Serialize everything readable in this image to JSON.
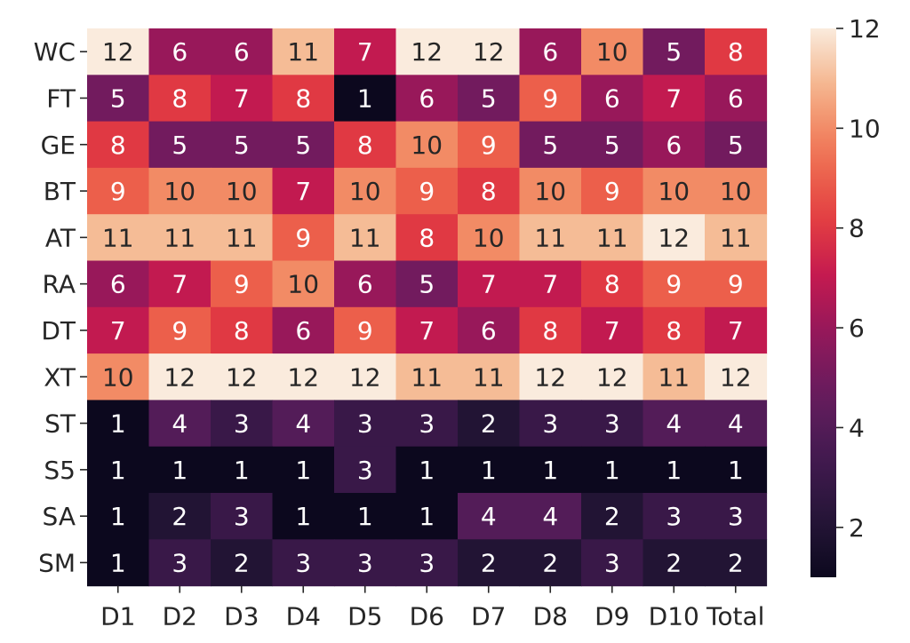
{
  "chart_data": {
    "type": "heatmap",
    "title": "",
    "xlabel": "",
    "ylabel": "",
    "columns": [
      "D1",
      "D2",
      "D3",
      "D4",
      "D5",
      "D6",
      "D7",
      "D8",
      "D9",
      "D10",
      "Total"
    ],
    "rows": [
      "WC",
      "FT",
      "GE",
      "BT",
      "AT",
      "RA",
      "DT",
      "XT",
      "ST",
      "S5",
      "SA",
      "SM"
    ],
    "values": [
      [
        12,
        6,
        6,
        11,
        7,
        12,
        12,
        6,
        10,
        5,
        8
      ],
      [
        5,
        8,
        7,
        8,
        1,
        6,
        5,
        9,
        6,
        7,
        6
      ],
      [
        8,
        5,
        5,
        5,
        8,
        10,
        9,
        5,
        5,
        6,
        5
      ],
      [
        9,
        10,
        10,
        7,
        10,
        9,
        8,
        10,
        9,
        10,
        10
      ],
      [
        11,
        11,
        11,
        9,
        11,
        8,
        10,
        11,
        11,
        12,
        11
      ],
      [
        6,
        7,
        9,
        10,
        6,
        5,
        7,
        7,
        8,
        9,
        9
      ],
      [
        7,
        9,
        8,
        6,
        9,
        7,
        6,
        8,
        7,
        8,
        7
      ],
      [
        10,
        12,
        12,
        12,
        12,
        11,
        11,
        12,
        12,
        11,
        12
      ],
      [
        1,
        4,
        3,
        4,
        3,
        3,
        2,
        3,
        3,
        4,
        4
      ],
      [
        1,
        1,
        1,
        1,
        3,
        1,
        1,
        1,
        1,
        1,
        1
      ],
      [
        1,
        2,
        3,
        1,
        1,
        1,
        4,
        4,
        2,
        3,
        3
      ],
      [
        1,
        3,
        2,
        3,
        3,
        3,
        2,
        2,
        3,
        2,
        2
      ]
    ],
    "colorbar": {
      "min": 1,
      "max": 12,
      "ticks": [
        2,
        4,
        6,
        8,
        10,
        12
      ],
      "colormap": "rocket"
    },
    "colors": {
      "text_light": "#ffffff",
      "text_dark": "#262626"
    }
  }
}
